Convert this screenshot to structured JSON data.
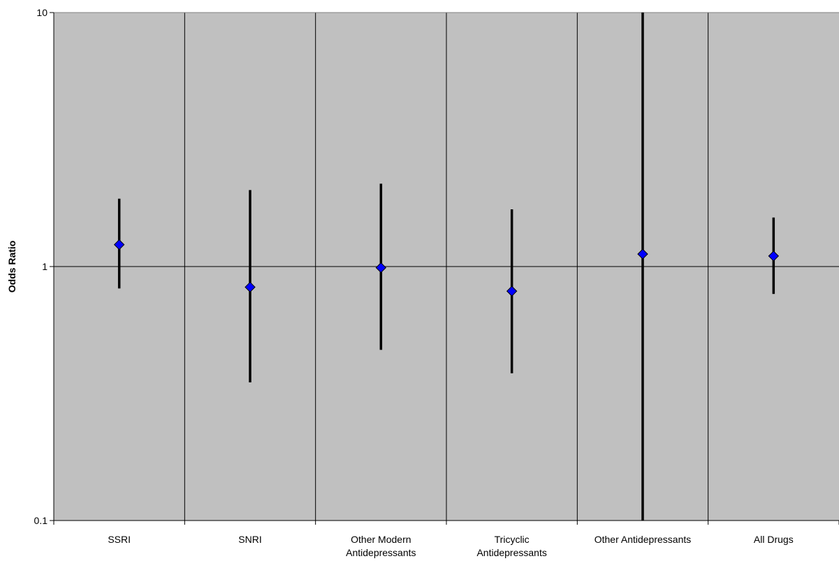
{
  "chart_data": {
    "type": "scatter",
    "title": "",
    "xlabel": "",
    "ylabel": "Odds Ratio",
    "yscale": "log",
    "ylim": [
      0.1,
      10
    ],
    "yticks": [
      "0.1",
      "1",
      "10"
    ],
    "grid": "vertical separators between categories; horizontal reference line at 1",
    "legend": "none",
    "categories": [
      [
        "SSRI"
      ],
      [
        "SNRI"
      ],
      [
        "Other Modern",
        "Antidepressants"
      ],
      [
        "Tricyclic",
        "Antidepressants"
      ],
      [
        "Other Antidepressants"
      ],
      [
        "All Drugs"
      ]
    ],
    "series": [
      {
        "values": [
          1.22,
          0.83,
          0.99,
          0.8,
          1.12,
          1.1
        ],
        "lower": [
          0.82,
          0.35,
          0.47,
          0.38,
          0.1,
          0.78
        ],
        "upper": [
          1.85,
          2.0,
          2.12,
          1.68,
          10.0,
          1.56
        ]
      }
    ],
    "colors": {
      "plot_background": "#c0c0c0",
      "marker_fill": "#0000ff",
      "marker_stroke": "#000000",
      "error_bar": "#000000"
    }
  }
}
